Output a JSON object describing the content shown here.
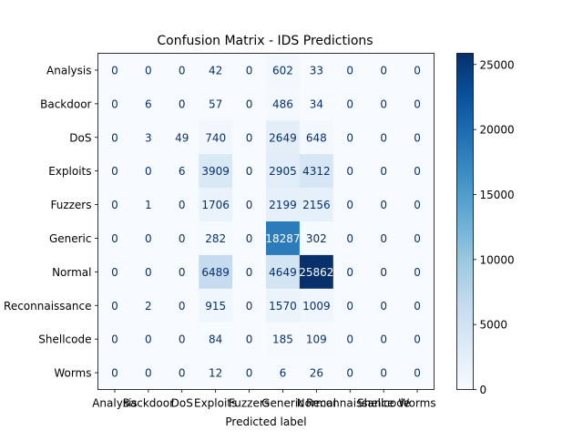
{
  "chart_data": {
    "type": "heatmap",
    "title": "Confusion Matrix - IDS Predictions",
    "xlabel": "Predicted label",
    "ylabel": "",
    "labels": [
      "Analysis",
      "Backdoor",
      "DoS",
      "Exploits",
      "Fuzzers",
      "Generic",
      "Normal",
      "Reconnaissance",
      "Shellcode",
      "Worms"
    ],
    "values": [
      [
        0,
        0,
        0,
        42,
        0,
        602,
        33,
        0,
        0,
        0
      ],
      [
        0,
        6,
        0,
        57,
        0,
        486,
        34,
        0,
        0,
        0
      ],
      [
        0,
        3,
        49,
        740,
        0,
        2649,
        648,
        0,
        0,
        0
      ],
      [
        0,
        0,
        6,
        3909,
        0,
        2905,
        4312,
        0,
        0,
        0
      ],
      [
        0,
        1,
        0,
        1706,
        0,
        2199,
        2156,
        0,
        0,
        0
      ],
      [
        0,
        0,
        0,
        282,
        0,
        18287,
        302,
        0,
        0,
        0
      ],
      [
        0,
        0,
        0,
        6489,
        0,
        4649,
        25862,
        0,
        0,
        0
      ],
      [
        0,
        2,
        0,
        915,
        0,
        1570,
        1009,
        0,
        0,
        0
      ],
      [
        0,
        0,
        0,
        84,
        0,
        185,
        109,
        0,
        0,
        0
      ],
      [
        0,
        0,
        0,
        12,
        0,
        6,
        26,
        0,
        0,
        0
      ]
    ],
    "colorbar": {
      "colormap": "Blues",
      "min": 0,
      "max": 25862,
      "ticks": [
        0,
        5000,
        10000,
        15000,
        20000,
        25000
      ]
    },
    "grid": false,
    "legend": "colorbar-right"
  }
}
